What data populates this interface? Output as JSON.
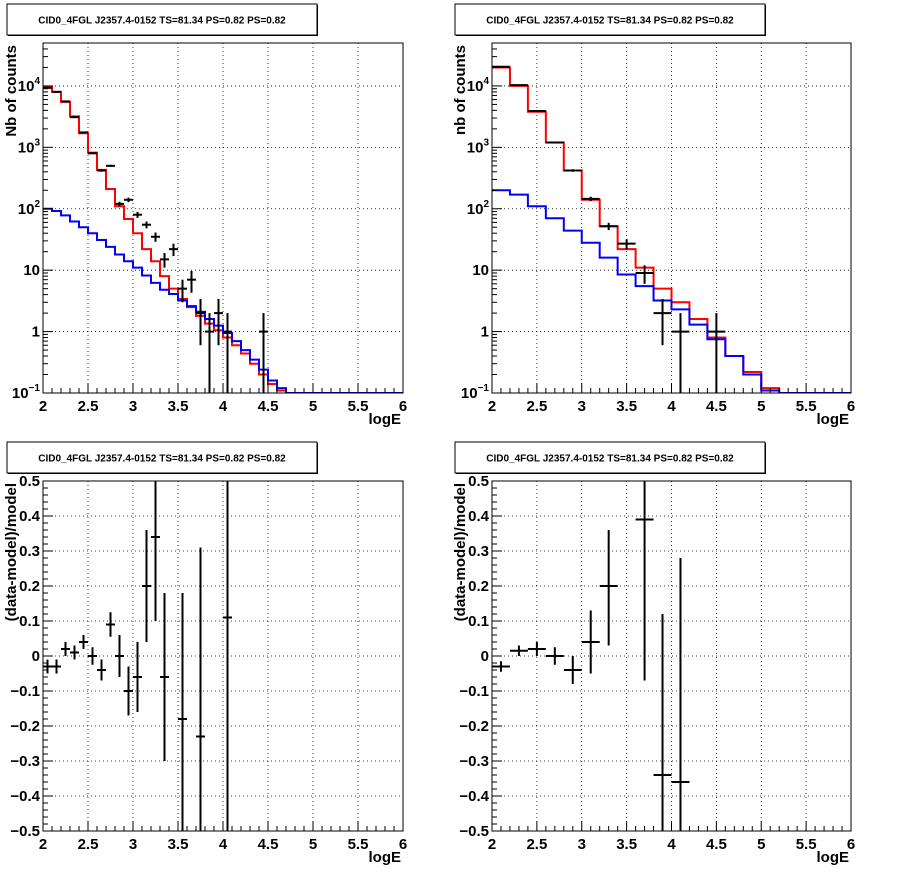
{
  "canvas": {
    "background": "#ffffff",
    "frame_color": "#000000",
    "grid_color": "#000000"
  },
  "chart_data": [
    {
      "type": "line",
      "panel": "top-left",
      "title": "CID0_4FGL J2357.4-0152 TS=81.34 PS=0.82 PS=0.82",
      "xlabel": "logE",
      "ylabel": "Nb of counts",
      "xlim": [
        2,
        6
      ],
      "ylim": [
        0.1,
        50000
      ],
      "log_y": true,
      "grid": true,
      "x_ticks": [
        "2",
        "2.5",
        "3",
        "3.5",
        "4",
        "4.5",
        "5",
        "5.5",
        "6"
      ],
      "y_ticks": [
        {
          "value": 0.1,
          "label": "10",
          "exp": "−1"
        },
        {
          "value": 1,
          "label": "1",
          "exp": ""
        },
        {
          "value": 10,
          "label": "10",
          "exp": ""
        },
        {
          "value": 100,
          "label": "10",
          "exp": "2"
        },
        {
          "value": 1000,
          "label": "10",
          "exp": "3"
        },
        {
          "value": 10000,
          "label": "10",
          "exp": "4"
        }
      ],
      "series": [
        {
          "role": "model-red",
          "color": "#ff0000",
          "style": "step",
          "edges": [
            2.0,
            2.1,
            2.2,
            2.3,
            2.4,
            2.5,
            2.6,
            2.7,
            2.8,
            2.9,
            3.0,
            3.1,
            3.2,
            3.3,
            3.4,
            3.5,
            3.6,
            3.7,
            3.8,
            3.9,
            4.0,
            4.1,
            4.2,
            4.3,
            4.4,
            4.5,
            4.6,
            4.7,
            4.8,
            4.9,
            5.0,
            5.1,
            5.2,
            5.3,
            5.4,
            5.5,
            5.6,
            5.7,
            5.8,
            5.9,
            6.0
          ],
          "values": [
            9500,
            8000,
            5500,
            3200,
            1700,
            820,
            430,
            210,
            110,
            68,
            40,
            22,
            14,
            8,
            5,
            3.4,
            2.5,
            1.8,
            1.35,
            1.05,
            0.8,
            0.6,
            0.44,
            0.3,
            0.2,
            0.14,
            0.11,
            0.1,
            0.1,
            0.1,
            0.1,
            0.1,
            0.1,
            0.1,
            0.1,
            0.1,
            0.1,
            0.1,
            0.1,
            0.1
          ]
        },
        {
          "role": "model-blue",
          "color": "#0000ff",
          "style": "step",
          "edges": [
            2.0,
            2.1,
            2.2,
            2.3,
            2.4,
            2.5,
            2.6,
            2.7,
            2.8,
            2.9,
            3.0,
            3.1,
            3.2,
            3.3,
            3.4,
            3.5,
            3.6,
            3.7,
            3.8,
            3.9,
            4.0,
            4.1,
            4.2,
            4.3,
            4.4,
            4.5,
            4.6,
            4.7,
            4.8,
            4.9,
            5.0,
            5.1,
            5.2,
            5.3,
            5.4,
            5.5,
            5.6,
            5.7,
            5.8,
            5.9,
            6.0
          ],
          "values": [
            100,
            92,
            78,
            62,
            50,
            40,
            31,
            24,
            18,
            14,
            11,
            8.2,
            6.2,
            4.8,
            4.1,
            3.2,
            2.6,
            2.1,
            1.6,
            1.25,
            0.95,
            0.7,
            0.5,
            0.35,
            0.24,
            0.16,
            0.12,
            0.1,
            0.1,
            0.1,
            0.1,
            0.1,
            0.1,
            0.1,
            0.1,
            0.1,
            0.1,
            0.1,
            0.1,
            0.1
          ]
        },
        {
          "role": "data",
          "color": "#000000",
          "style": "errorbar",
          "xerr": 0.05,
          "points": [
            {
              "x": 2.05,
              "y": 9300,
              "lo": 9200,
              "hi": 9400
            },
            {
              "x": 2.15,
              "y": 8000,
              "lo": 7900,
              "hi": 8100
            },
            {
              "x": 2.25,
              "y": 5600,
              "lo": 5500,
              "hi": 5700
            },
            {
              "x": 2.35,
              "y": 3100,
              "lo": 3050,
              "hi": 3150
            },
            {
              "x": 2.45,
              "y": 1750,
              "lo": 1700,
              "hi": 1800
            },
            {
              "x": 2.55,
              "y": 800,
              "lo": 780,
              "hi": 830
            },
            {
              "x": 2.65,
              "y": 420,
              "lo": 400,
              "hi": 440
            },
            {
              "x": 2.75,
              "y": 500,
              "lo": 480,
              "hi": 520
            },
            {
              "x": 2.85,
              "y": 120,
              "lo": 110,
              "hi": 130
            },
            {
              "x": 2.95,
              "y": 140,
              "lo": 128,
              "hi": 152
            },
            {
              "x": 3.05,
              "y": 80,
              "lo": 71,
              "hi": 89
            },
            {
              "x": 3.15,
              "y": 55,
              "lo": 48,
              "hi": 62
            },
            {
              "x": 3.25,
              "y": 35,
              "lo": 29,
              "hi": 41
            },
            {
              "x": 3.35,
              "y": 15,
              "lo": 11,
              "hi": 19
            },
            {
              "x": 3.45,
              "y": 22,
              "lo": 17,
              "hi": 27
            },
            {
              "x": 3.55,
              "y": 5,
              "lo": 3,
              "hi": 7
            },
            {
              "x": 3.65,
              "y": 7,
              "lo": 4.3,
              "hi": 9.7
            },
            {
              "x": 3.75,
              "y": 2,
              "lo": 0.6,
              "hi": 3.4
            },
            {
              "x": 3.85,
              "y": 1,
              "lo": 0.1,
              "hi": 2
            },
            {
              "x": 3.95,
              "y": 2,
              "lo": 0.6,
              "hi": 3.4
            },
            {
              "x": 4.05,
              "y": 1,
              "lo": 0.1,
              "hi": 2
            },
            {
              "x": 4.45,
              "y": 1,
              "lo": 0.1,
              "hi": 2
            }
          ]
        }
      ]
    },
    {
      "type": "line",
      "panel": "top-right",
      "title": "CID0_4FGL J2357.4-0152 TS=81.34 PS=0.82 PS=0.82",
      "xlabel": "logE",
      "ylabel": "nb of counts",
      "xlim": [
        2,
        6
      ],
      "ylim": [
        0.1,
        50000
      ],
      "log_y": true,
      "grid": true,
      "x_ticks": [
        "2",
        "2.5",
        "3",
        "3.5",
        "4",
        "4.5",
        "5",
        "5.5",
        "6"
      ],
      "y_ticks": [
        {
          "value": 0.1,
          "label": "10",
          "exp": "−1"
        },
        {
          "value": 1,
          "label": "1",
          "exp": ""
        },
        {
          "value": 10,
          "label": "10",
          "exp": ""
        },
        {
          "value": 100,
          "label": "10",
          "exp": "2"
        },
        {
          "value": 1000,
          "label": "10",
          "exp": "3"
        },
        {
          "value": 10000,
          "label": "10",
          "exp": "4"
        }
      ],
      "series": [
        {
          "role": "model-red",
          "color": "#ff0000",
          "style": "step",
          "edges": [
            2.0,
            2.2,
            2.4,
            2.6,
            2.8,
            3.0,
            3.2,
            3.4,
            3.6,
            3.8,
            4.0,
            4.2,
            4.4,
            4.6,
            4.8,
            5.0,
            5.2,
            5.4,
            5.6,
            5.8,
            6.0
          ],
          "values": [
            20000,
            10000,
            3800,
            1200,
            420,
            140,
            52,
            22,
            11,
            5,
            3,
            1.6,
            0.8,
            0.4,
            0.22,
            0.12,
            0.1,
            0.1,
            0.1,
            0.1
          ]
        },
        {
          "role": "model-blue",
          "color": "#0000ff",
          "style": "step",
          "edges": [
            2.0,
            2.2,
            2.4,
            2.6,
            2.8,
            3.0,
            3.2,
            3.4,
            3.6,
            3.8,
            4.0,
            4.2,
            4.4,
            4.6,
            4.8,
            5.0,
            5.2,
            5.4,
            5.6,
            5.8,
            6.0
          ],
          "values": [
            200,
            170,
            110,
            70,
            44,
            28,
            16,
            8.5,
            5.5,
            3.2,
            2.3,
            1.3,
            0.75,
            0.4,
            0.2,
            0.11,
            0.1,
            0.1,
            0.1,
            0.1
          ]
        },
        {
          "role": "data",
          "color": "#000000",
          "style": "errorbar",
          "xerr": 0.1,
          "points": [
            {
              "x": 2.1,
              "y": 20500,
              "lo": 20300,
              "hi": 20700
            },
            {
              "x": 2.3,
              "y": 10300,
              "lo": 10150,
              "hi": 10450
            },
            {
              "x": 2.5,
              "y": 3900,
              "lo": 3840,
              "hi": 3960
            },
            {
              "x": 2.7,
              "y": 1200,
              "lo": 1165,
              "hi": 1235
            },
            {
              "x": 2.9,
              "y": 420,
              "lo": 400,
              "hi": 440
            },
            {
              "x": 3.1,
              "y": 145,
              "lo": 133,
              "hi": 157
            },
            {
              "x": 3.3,
              "y": 52,
              "lo": 45,
              "hi": 59
            },
            {
              "x": 3.5,
              "y": 27,
              "lo": 22,
              "hi": 32
            },
            {
              "x": 3.7,
              "y": 9,
              "lo": 6,
              "hi": 12
            },
            {
              "x": 3.9,
              "y": 2,
              "lo": 0.6,
              "hi": 3.4
            },
            {
              "x": 4.1,
              "y": 1,
              "lo": 0.1,
              "hi": 2
            },
            {
              "x": 4.5,
              "y": 1,
              "lo": 0.1,
              "hi": 2
            }
          ]
        }
      ]
    },
    {
      "type": "scatter",
      "panel": "bottom-left",
      "title": "CID0_4FGL J2357.4-0152 TS=81.34 PS=0.82 PS=0.82",
      "xlabel": "logE",
      "ylabel": "(data-model)/model",
      "xlim": [
        2,
        6
      ],
      "ylim": [
        -0.5,
        0.5
      ],
      "log_y": false,
      "grid": true,
      "x_ticks": [
        "2",
        "2.5",
        "3",
        "3.5",
        "4",
        "4.5",
        "5",
        "5.5",
        "6"
      ],
      "y_ticks": [
        {
          "value": -0.5,
          "label": "−0.5"
        },
        {
          "value": -0.4,
          "label": "−0.4"
        },
        {
          "value": -0.3,
          "label": "−0.3"
        },
        {
          "value": -0.2,
          "label": "−0.2"
        },
        {
          "value": -0.1,
          "label": "−0.1"
        },
        {
          "value": 0,
          "label": "0"
        },
        {
          "value": 0.1,
          "label": "0.1"
        },
        {
          "value": 0.2,
          "label": "0.2"
        },
        {
          "value": 0.3,
          "label": "0.3"
        },
        {
          "value": 0.4,
          "label": "0.4"
        },
        {
          "value": 0.5,
          "label": "0.5"
        }
      ],
      "series": [
        {
          "role": "residuals",
          "color": "#000000",
          "style": "errorbar",
          "xerr": 0.05,
          "points": [
            {
              "x": 2.05,
              "y": -0.03,
              "lo": -0.05,
              "hi": -0.01
            },
            {
              "x": 2.15,
              "y": -0.03,
              "lo": -0.05,
              "hi": -0.01
            },
            {
              "x": 2.25,
              "y": 0.02,
              "lo": 0.0,
              "hi": 0.04
            },
            {
              "x": 2.35,
              "y": 0.01,
              "lo": -0.01,
              "hi": 0.03
            },
            {
              "x": 2.45,
              "y": 0.04,
              "lo": 0.02,
              "hi": 0.06
            },
            {
              "x": 2.55,
              "y": 0.0,
              "lo": -0.025,
              "hi": 0.025
            },
            {
              "x": 2.65,
              "y": -0.04,
              "lo": -0.07,
              "hi": -0.01
            },
            {
              "x": 2.75,
              "y": 0.09,
              "lo": 0.055,
              "hi": 0.125
            },
            {
              "x": 2.85,
              "y": 0.0,
              "lo": -0.06,
              "hi": 0.06
            },
            {
              "x": 2.95,
              "y": -0.1,
              "lo": -0.17,
              "hi": -0.03
            },
            {
              "x": 3.05,
              "y": -0.06,
              "lo": -0.16,
              "hi": 0.04
            },
            {
              "x": 3.15,
              "y": 0.2,
              "lo": 0.04,
              "hi": 0.36
            },
            {
              "x": 3.25,
              "y": 0.34,
              "lo": 0.1,
              "hi": 0.5
            },
            {
              "x": 3.35,
              "y": -0.06,
              "lo": -0.3,
              "hi": 0.18
            },
            {
              "x": 3.55,
              "y": -0.18,
              "lo": -0.5,
              "hi": 0.18
            },
            {
              "x": 3.75,
              "y": -0.23,
              "lo": -0.5,
              "hi": 0.31
            },
            {
              "x": 4.05,
              "y": 0.11,
              "lo": -0.5,
              "hi": 0.5
            }
          ]
        }
      ]
    },
    {
      "type": "scatter",
      "panel": "bottom-right",
      "title": "CID0_4FGL J2357.4-0152 TS=81.34 PS=0.82 PS=0.82",
      "xlabel": "logE",
      "ylabel": "(data-model)/model",
      "xlim": [
        2,
        6
      ],
      "ylim": [
        -0.5,
        0.5
      ],
      "log_y": false,
      "grid": true,
      "x_ticks": [
        "2",
        "2.5",
        "3",
        "3.5",
        "4",
        "4.5",
        "5",
        "5.5",
        "6"
      ],
      "y_ticks": [
        {
          "value": -0.5,
          "label": "−0.5"
        },
        {
          "value": -0.4,
          "label": "−0.4"
        },
        {
          "value": -0.3,
          "label": "−0.3"
        },
        {
          "value": -0.2,
          "label": "−0.2"
        },
        {
          "value": -0.1,
          "label": "−0.1"
        },
        {
          "value": 0,
          "label": "0"
        },
        {
          "value": 0.1,
          "label": "0.1"
        },
        {
          "value": 0.2,
          "label": "0.2"
        },
        {
          "value": 0.3,
          "label": "0.3"
        },
        {
          "value": 0.4,
          "label": "0.4"
        },
        {
          "value": 0.5,
          "label": "0.5"
        }
      ],
      "series": [
        {
          "role": "residuals",
          "color": "#000000",
          "style": "errorbar",
          "xerr": 0.1,
          "points": [
            {
              "x": 2.1,
              "y": -0.03,
              "lo": -0.045,
              "hi": -0.015
            },
            {
              "x": 2.3,
              "y": 0.015,
              "lo": 0.0,
              "hi": 0.03
            },
            {
              "x": 2.5,
              "y": 0.02,
              "lo": 0.0,
              "hi": 0.04
            },
            {
              "x": 2.7,
              "y": 0.0,
              "lo": -0.025,
              "hi": 0.025
            },
            {
              "x": 2.9,
              "y": -0.04,
              "lo": -0.08,
              "hi": 0.0
            },
            {
              "x": 3.1,
              "y": 0.04,
              "lo": -0.05,
              "hi": 0.13
            },
            {
              "x": 3.3,
              "y": 0.2,
              "lo": 0.03,
              "hi": 0.36
            },
            {
              "x": 3.7,
              "y": 0.39,
              "lo": -0.07,
              "hi": 0.5
            },
            {
              "x": 3.9,
              "y": -0.34,
              "lo": -0.5,
              "hi": 0.12
            },
            {
              "x": 4.1,
              "y": -0.36,
              "lo": -0.5,
              "hi": 0.28
            }
          ]
        }
      ]
    }
  ]
}
